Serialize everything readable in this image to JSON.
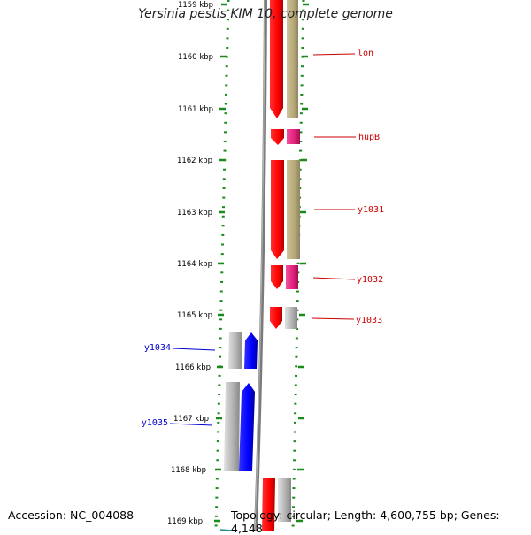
{
  "title": "Yersinia pestis KIM 10, complete genome",
  "footer": {
    "accession": "Accession: NC_004088",
    "topology": "Topology: circular; Length: 4,600,755 bp; Genes: 4,148"
  },
  "kbp_labels": [
    "1159 kbp",
    "1160 kbp",
    "1161 kbp",
    "1162 kbp",
    "1163 kbp",
    "1164 kbp",
    "1165 kbp",
    "1166 kbp",
    "1167 kbp",
    "1168 kbp",
    "1169 kbp"
  ],
  "genes": [
    {
      "label": "lon",
      "strand": "forward",
      "label_color": "#cc0000"
    },
    {
      "label": "hupB",
      "strand": "forward",
      "label_color": "#cc0000"
    },
    {
      "label": "y1031",
      "strand": "forward",
      "label_color": "#cc0000"
    },
    {
      "label": "y1032",
      "strand": "forward",
      "label_color": "#cc0000"
    },
    {
      "label": "y1033",
      "strand": "forward",
      "label_color": "#cc0000"
    },
    {
      "label": "y1034",
      "strand": "reverse",
      "label_color": "#0000cc"
    },
    {
      "label": "y1035",
      "strand": "reverse",
      "label_color": "#0000cc"
    }
  ],
  "colors": {
    "forward_gene": "#ff0000",
    "reverse_gene": "#0000ff",
    "cds_tan": "#b5a878",
    "cds_magenta": "#e0207a",
    "cds_gray": "#b0b0b0",
    "backbone": "#7a7a7a",
    "ticks": "#1a8a1a"
  }
}
